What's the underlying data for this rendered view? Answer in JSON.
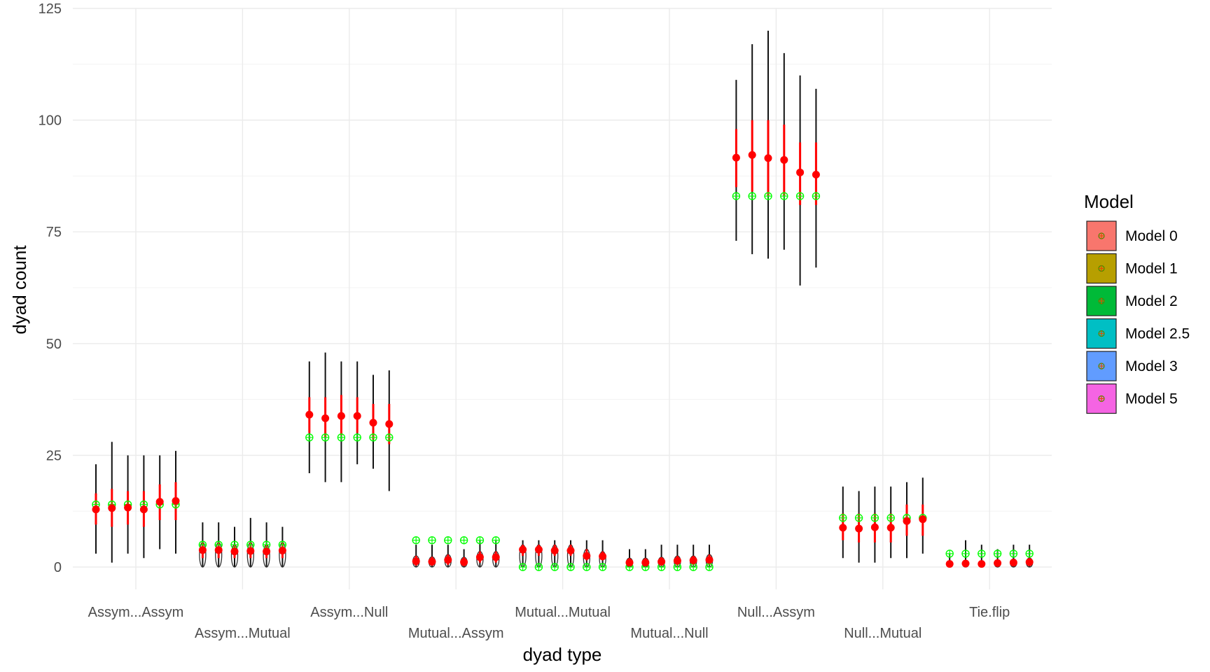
{
  "chart_data": {
    "type": "scatter",
    "subtype": "pointrange",
    "xlabel": "dyad type",
    "ylabel": "dyad count",
    "ylim": [
      -5,
      125
    ],
    "yticks": [
      0,
      25,
      50,
      75,
      100,
      125
    ],
    "grid": true,
    "legend_position": "right",
    "legend_title": "Model",
    "categories": [
      "Assym...Assym",
      "Assym...Mutual",
      "Assym...Null",
      "Mutual...Assym",
      "Mutual...Mutual",
      "Mutual...Null",
      "Null...Assym",
      "Null...Mutual",
      "Tie.flip"
    ],
    "models": [
      {
        "name": "Model 0",
        "color": "#F8766D"
      },
      {
        "name": "Model 1",
        "color": "#B79F00"
      },
      {
        "name": "Model 2",
        "color": "#00BA38"
      },
      {
        "name": "Model 2.5",
        "color": "#00BFC4"
      },
      {
        "name": "Model 3",
        "color": "#619CFF"
      },
      {
        "name": "Model 5",
        "color": "#F564E3"
      }
    ],
    "simulated": [
      [
        {
          "mean": 12.9,
          "lo": 3,
          "hi": 23,
          "q_lo": 9.5,
          "q_hi": 16.5
        },
        {
          "mean": 13.2,
          "lo": 1,
          "hi": 28,
          "q_lo": 9,
          "q_hi": 17.5
        },
        {
          "mean": 13.3,
          "lo": 3,
          "hi": 25,
          "q_lo": 9.5,
          "q_hi": 17
        },
        {
          "mean": 12.9,
          "lo": 2,
          "hi": 25,
          "q_lo": 9,
          "q_hi": 17
        },
        {
          "mean": 14.6,
          "lo": 4,
          "hi": 25,
          "q_lo": 10.5,
          "q_hi": 18.5
        },
        {
          "mean": 14.8,
          "lo": 3,
          "hi": 26,
          "q_lo": 10.5,
          "q_hi": 19
        }
      ],
      [
        {
          "mean": 3.8,
          "lo": 0,
          "hi": 10,
          "q_lo": 2,
          "q_hi": 5.5
        },
        {
          "mean": 3.8,
          "lo": 0,
          "hi": 10,
          "q_lo": 2,
          "q_hi": 5.5
        },
        {
          "mean": 3.5,
          "lo": 0,
          "hi": 9,
          "q_lo": 2,
          "q_hi": 5
        },
        {
          "mean": 3.6,
          "lo": 0,
          "hi": 11,
          "q_lo": 2,
          "q_hi": 5.5
        },
        {
          "mean": 3.5,
          "lo": 0,
          "hi": 10,
          "q_lo": 2,
          "q_hi": 5
        },
        {
          "mean": 3.7,
          "lo": 0,
          "hi": 9,
          "q_lo": 2,
          "q_hi": 5.5
        }
      ],
      [
        {
          "mean": 34.1,
          "lo": 21,
          "hi": 46,
          "q_lo": 30,
          "q_hi": 38
        },
        {
          "mean": 33.3,
          "lo": 19,
          "hi": 48,
          "q_lo": 29,
          "q_hi": 38
        },
        {
          "mean": 33.8,
          "lo": 19,
          "hi": 46,
          "q_lo": 29.5,
          "q_hi": 38.5
        },
        {
          "mean": 33.8,
          "lo": 23,
          "hi": 46,
          "q_lo": 30,
          "q_hi": 38
        },
        {
          "mean": 32.3,
          "lo": 22,
          "hi": 43,
          "q_lo": 28.5,
          "q_hi": 36.5
        },
        {
          "mean": 32.0,
          "lo": 17,
          "hi": 44,
          "q_lo": 27.5,
          "q_hi": 36.5
        }
      ],
      [
        {
          "mean": 1.3,
          "lo": 0,
          "hi": 5,
          "q_lo": 0.3,
          "q_hi": 2.5
        },
        {
          "mean": 1.2,
          "lo": 0,
          "hi": 5,
          "q_lo": 0.3,
          "q_hi": 2.3
        },
        {
          "mean": 1.6,
          "lo": 0,
          "hi": 5,
          "q_lo": 0.5,
          "q_hi": 2.8
        },
        {
          "mean": 1.1,
          "lo": 0,
          "hi": 4,
          "q_lo": 0.2,
          "q_hi": 2.2
        },
        {
          "mean": 2.2,
          "lo": 0,
          "hi": 6,
          "q_lo": 1,
          "q_hi": 3.5
        },
        {
          "mean": 2.2,
          "lo": 0,
          "hi": 6,
          "q_lo": 1,
          "q_hi": 3.5
        }
      ],
      [
        {
          "mean": 3.9,
          "lo": 0,
          "hi": 6,
          "q_lo": 2.5,
          "q_hi": 5
        },
        {
          "mean": 3.9,
          "lo": 0,
          "hi": 6,
          "q_lo": 2.5,
          "q_hi": 5
        },
        {
          "mean": 3.7,
          "lo": 0,
          "hi": 6,
          "q_lo": 2.5,
          "q_hi": 5
        },
        {
          "mean": 3.7,
          "lo": 0,
          "hi": 6,
          "q_lo": 2.5,
          "q_hi": 5
        },
        {
          "mean": 2.5,
          "lo": 0,
          "hi": 6,
          "q_lo": 1.5,
          "q_hi": 4
        },
        {
          "mean": 2.4,
          "lo": 0,
          "hi": 6,
          "q_lo": 1.5,
          "q_hi": 3.5
        }
      ],
      [
        {
          "mean": 1.0,
          "lo": 0,
          "hi": 4,
          "q_lo": 0.2,
          "q_hi": 2
        },
        {
          "mean": 1.0,
          "lo": 0,
          "hi": 4,
          "q_lo": 0.2,
          "q_hi": 2
        },
        {
          "mean": 1.2,
          "lo": 0,
          "hi": 5,
          "q_lo": 0.3,
          "q_hi": 2.2
        },
        {
          "mean": 1.4,
          "lo": 0,
          "hi": 5,
          "q_lo": 0.4,
          "q_hi": 2.5
        },
        {
          "mean": 1.5,
          "lo": 0,
          "hi": 5,
          "q_lo": 0.5,
          "q_hi": 2.5
        },
        {
          "mean": 1.6,
          "lo": 0,
          "hi": 5,
          "q_lo": 0.5,
          "q_hi": 2.8
        }
      ],
      [
        {
          "mean": 91.6,
          "lo": 73,
          "hi": 109,
          "q_lo": 85,
          "q_hi": 98
        },
        {
          "mean": 92.2,
          "lo": 70,
          "hi": 117,
          "q_lo": 84,
          "q_hi": 100
        },
        {
          "mean": 91.5,
          "lo": 69,
          "hi": 120,
          "q_lo": 83,
          "q_hi": 100
        },
        {
          "mean": 91.1,
          "lo": 71,
          "hi": 115,
          "q_lo": 83,
          "q_hi": 99
        },
        {
          "mean": 88.3,
          "lo": 63,
          "hi": 110,
          "q_lo": 81,
          "q_hi": 95
        },
        {
          "mean": 87.8,
          "lo": 67,
          "hi": 107,
          "q_lo": 81,
          "q_hi": 95
        }
      ],
      [
        {
          "mean": 8.8,
          "lo": 2,
          "hi": 18,
          "q_lo": 6,
          "q_hi": 12
        },
        {
          "mean": 8.6,
          "lo": 1,
          "hi": 17,
          "q_lo": 5.5,
          "q_hi": 12
        },
        {
          "mean": 8.9,
          "lo": 1,
          "hi": 18,
          "q_lo": 5.5,
          "q_hi": 12
        },
        {
          "mean": 8.8,
          "lo": 2,
          "hi": 18,
          "q_lo": 5.5,
          "q_hi": 12
        },
        {
          "mean": 10.3,
          "lo": 2,
          "hi": 19,
          "q_lo": 7,
          "q_hi": 14
        },
        {
          "mean": 10.7,
          "lo": 3,
          "hi": 20,
          "q_lo": 7,
          "q_hi": 14
        }
      ],
      [
        {
          "mean": 0.7,
          "lo": 0,
          "hi": 3,
          "q_lo": 0.1,
          "q_hi": 1.3
        },
        {
          "mean": 0.8,
          "lo": 0,
          "hi": 6,
          "q_lo": 0.1,
          "q_hi": 1.5
        },
        {
          "mean": 0.7,
          "lo": 0,
          "hi": 5,
          "q_lo": 0.1,
          "q_hi": 1.4
        },
        {
          "mean": 0.9,
          "lo": 0,
          "hi": 4,
          "q_lo": 0.2,
          "q_hi": 1.6
        },
        {
          "mean": 1.0,
          "lo": 0,
          "hi": 5,
          "q_lo": 0.2,
          "q_hi": 1.8
        },
        {
          "mean": 1.1,
          "lo": 0,
          "hi": 5,
          "q_lo": 0.2,
          "q_hi": 2
        }
      ]
    ],
    "observed": [
      14,
      5,
      29,
      6,
      0,
      0,
      83,
      11,
      3
    ]
  }
}
